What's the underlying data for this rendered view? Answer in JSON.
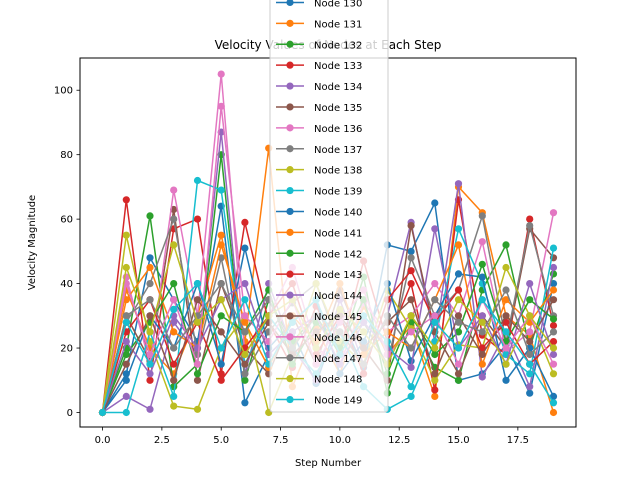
{
  "chart_data": {
    "type": "line",
    "title": "Velocity Values of Nodes at Each Step",
    "xlabel": "Step Number",
    "ylabel": "Velocity Magnitude",
    "xlim": [
      -0.95,
      19.95
    ],
    "ylim": [
      -4.5,
      110
    ],
    "x_ticks": [
      0.0,
      2.5,
      5.0,
      7.5,
      10.0,
      12.5,
      15.0,
      17.5
    ],
    "x_tick_labels": [
      "0.0",
      "2.5",
      "5.0",
      "7.5",
      "10.0",
      "12.5",
      "15.0",
      "17.5"
    ],
    "y_ticks": [
      0,
      20,
      40,
      60,
      80,
      100
    ],
    "y_tick_labels": [
      "0",
      "20",
      "40",
      "60",
      "80",
      "100"
    ],
    "grid": false,
    "legend_position": "top-center",
    "x": [
      0,
      1,
      2,
      3,
      4,
      5,
      6,
      7,
      8,
      9,
      10,
      11,
      12,
      13,
      14,
      15,
      16,
      17,
      18,
      19
    ],
    "series": [
      {
        "name": "Node 130",
        "color": "#1f77b4",
        "values": [
          0,
          12,
          48,
          35,
          22,
          64,
          3,
          18,
          25,
          9,
          30,
          14,
          52,
          50,
          65,
          10,
          12,
          21,
          6,
          40
        ]
      },
      {
        "name": "Node 131",
        "color": "#ff7f0e",
        "values": [
          0,
          38,
          20,
          12,
          30,
          55,
          22,
          82,
          8,
          26,
          12,
          33,
          18,
          27,
          5,
          70,
          62,
          30,
          24,
          0
        ]
      },
      {
        "name": "Node 132",
        "color": "#2ca02c",
        "values": [
          0,
          20,
          61,
          8,
          15,
          80,
          10,
          35,
          22,
          30,
          18,
          42,
          6,
          28,
          14,
          10,
          38,
          52,
          20,
          43
        ]
      },
      {
        "name": "Node 133",
        "color": "#d62728",
        "values": [
          0,
          66,
          10,
          57,
          60,
          12,
          59,
          28,
          14,
          33,
          19,
          47,
          22,
          40,
          7,
          66,
          24,
          18,
          60,
          27
        ]
      },
      {
        "name": "Node 134",
        "color": "#9467bd",
        "values": [
          0,
          5,
          1,
          28,
          18,
          87,
          12,
          40,
          20,
          10,
          35,
          15,
          30,
          59,
          22,
          71,
          11,
          25,
          8,
          45
        ]
      },
      {
        "name": "Node 135",
        "color": "#8c564b",
        "values": [
          0,
          30,
          16,
          63,
          10,
          40,
          20,
          12,
          30,
          15,
          38,
          20,
          10,
          58,
          25,
          12,
          30,
          20,
          57,
          48
        ]
      },
      {
        "name": "Node 136",
        "color": "#e377c2",
        "values": [
          0,
          42,
          15,
          69,
          30,
          105,
          18,
          30,
          45,
          20,
          15,
          34,
          25,
          30,
          40,
          30,
          53,
          19,
          25,
          62
        ]
      },
      {
        "name": "Node 137",
        "color": "#7f7f7f",
        "values": [
          0,
          28,
          40,
          60,
          18,
          48,
          12,
          25,
          34,
          40,
          20,
          28,
          15,
          48,
          30,
          38,
          61,
          22,
          58,
          30
        ]
      },
      {
        "name": "Node 138",
        "color": "#bcbd22",
        "values": [
          0,
          55,
          22,
          2,
          1,
          20,
          30,
          0,
          18,
          40,
          22,
          15,
          38,
          26,
          10,
          21,
          20,
          45,
          30,
          12
        ]
      },
      {
        "name": "Node 139",
        "color": "#17becf",
        "values": [
          0,
          0,
          25,
          5,
          72,
          69,
          15,
          30,
          20,
          12,
          25,
          8,
          1,
          5,
          22,
          57,
          40,
          18,
          12,
          51
        ]
      },
      {
        "name": "Node 140",
        "color": "#1f77b4",
        "values": [
          0,
          10,
          30,
          20,
          40,
          15,
          51,
          20,
          28,
          35,
          12,
          22,
          40,
          16,
          30,
          43,
          42,
          10,
          20,
          5
        ]
      },
      {
        "name": "Node 141",
        "color": "#ff7f0e",
        "values": [
          0,
          35,
          45,
          25,
          20,
          52,
          28,
          14,
          30,
          22,
          40,
          18,
          25,
          20,
          35,
          52,
          15,
          35,
          28,
          38
        ]
      },
      {
        "name": "Node 142",
        "color": "#2ca02c",
        "values": [
          0,
          18,
          28,
          40,
          12,
          30,
          25,
          38,
          15,
          28,
          20,
          35,
          12,
          30,
          18,
          25,
          46,
          22,
          35,
          29
        ]
      },
      {
        "name": "Node 143",
        "color": "#d62728",
        "values": [
          0,
          25,
          35,
          15,
          28,
          10,
          20,
          30,
          40,
          18,
          30,
          12,
          35,
          44,
          28,
          38,
          20,
          28,
          15,
          22
        ]
      },
      {
        "name": "Node 144",
        "color": "#9467bd",
        "values": [
          0,
          22,
          12,
          30,
          20,
          35,
          40,
          18,
          25,
          30,
          15,
          28,
          20,
          14,
          57,
          20,
          30,
          15,
          40,
          18
        ]
      },
      {
        "name": "Node 145",
        "color": "#8c564b",
        "values": [
          0,
          15,
          30,
          10,
          35,
          25,
          15,
          28,
          18,
          25,
          30,
          20,
          28,
          35,
          12,
          30,
          18,
          30,
          22,
          35
        ]
      },
      {
        "name": "Node 146",
        "color": "#e377c2",
        "values": [
          0,
          40,
          18,
          35,
          15,
          95,
          30,
          22,
          35,
          15,
          28,
          38,
          18,
          25,
          30,
          15,
          35,
          20,
          30,
          15
        ]
      },
      {
        "name": "Node 147",
        "color": "#7f7f7f",
        "values": [
          0,
          30,
          35,
          20,
          30,
          40,
          25,
          35,
          20,
          30,
          25,
          15,
          30,
          20,
          35,
          28,
          25,
          38,
          18,
          25
        ]
      },
      {
        "name": "Node 148",
        "color": "#bcbd22",
        "values": [
          0,
          45,
          25,
          52,
          28,
          35,
          18,
          30,
          35,
          20,
          32,
          25,
          15,
          30,
          20,
          35,
          28,
          15,
          30,
          20
        ]
      },
      {
        "name": "Node 149",
        "color": "#17becf",
        "values": [
          0,
          28,
          15,
          32,
          40,
          20,
          35,
          15,
          28,
          35,
          18,
          30,
          22,
          8,
          28,
          20,
          35,
          25,
          15,
          3
        ]
      }
    ]
  }
}
